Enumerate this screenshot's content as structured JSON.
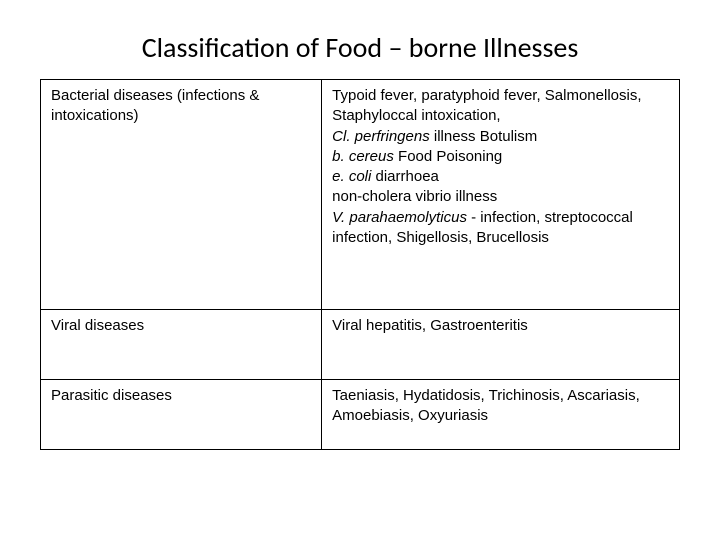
{
  "title": "Classification of Food – borne Illnesses",
  "table": {
    "border_color": "#000000",
    "background_color": "#ffffff",
    "text_color": "#000000",
    "font_family": "Verdana",
    "cell_fontsize": 15,
    "title_fontsize": 28,
    "rows": [
      {
        "left": "Bacterial diseases (infections & intoxications)",
        "right_lines": [
          {
            "text": "Typoid fever,  paratyphoid fever, Salmonellosis, Staphyloccal intoxication,"
          },
          {
            "italic": "Cl. perfringens",
            "rest": " illness Botulism"
          },
          {
            "italic": "b. cereus",
            "rest": " Food Poisoning"
          },
          {
            "italic": "e. coli",
            "rest": " diarrhoea"
          },
          {
            "text": "non-cholera vibrio illness"
          },
          {
            "italic": "V. parahaemolyticus",
            "rest": "   - infection, streptococcal infection,  Shigellosis, Brucellosis"
          }
        ]
      },
      {
        "left": " Viral diseases",
        "right": "Viral hepatitis,  Gastroenteritis"
      },
      {
        "left": " Parasitic diseases",
        "right": "Taeniasis,  Hydatidosis,  Trichinosis, Ascariasis,  Amoebiasis,  Oxyuriasis"
      }
    ]
  }
}
